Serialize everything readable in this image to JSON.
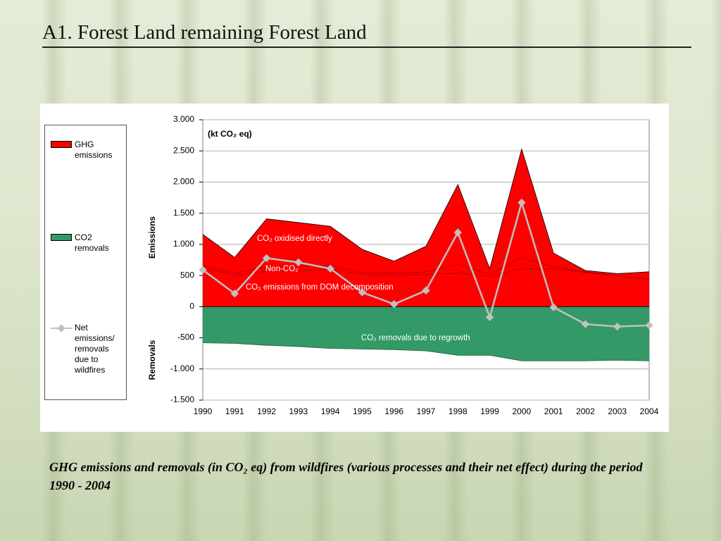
{
  "title": "A1. Forest Land remaining Forest Land",
  "caption": "GHG emissions and removals (in CO₂ eq) from wildfires (various processes and their net effect) during the period 1990 - 2004",
  "chart_data": {
    "type": "area",
    "unit_label": "(kt CO₂ eq)",
    "y_label_top": "Emissions",
    "y_label_bottom": "Removals",
    "categories": [
      "1990",
      "1991",
      "1992",
      "1993",
      "1994",
      "1995",
      "1996",
      "1997",
      "1998",
      "1999",
      "2000",
      "2001",
      "2002",
      "2003",
      "2004"
    ],
    "ylim": [
      -1500,
      3000
    ],
    "yticks": [
      {
        "value": 3000,
        "label": "3.000"
      },
      {
        "value": 2500,
        "label": "2.500"
      },
      {
        "value": 2000,
        "label": "2.000"
      },
      {
        "value": 1500,
        "label": "1.500"
      },
      {
        "value": 1000,
        "label": "1.000"
      },
      {
        "value": 500,
        "label": "500"
      },
      0,
      {
        "value": -500,
        "label": "-500"
      },
      {
        "value": -1000,
        "label": "-1.000"
      },
      {
        "value": -1500,
        "label": "-1.500"
      }
    ],
    "grid": true,
    "emissions": {
      "name": "GHG emissions",
      "color": "#ff0000",
      "components": [
        {
          "name": "CO₂ emissions from DOM decomposition",
          "values": [
            620,
            510,
            570,
            580,
            600,
            520,
            510,
            520,
            540,
            490,
            610,
            610,
            550,
            500,
            440
          ]
        },
        {
          "name": "Non-CO₂",
          "values": [
            40,
            30,
            70,
            70,
            60,
            30,
            30,
            40,
            140,
            30,
            180,
            30,
            10,
            0,
            0
          ]
        },
        {
          "name": "CO₂ oxidised directly",
          "values": [
            500,
            250,
            770,
            700,
            630,
            370,
            190,
            410,
            1280,
            90,
            1740,
            220,
            20,
            30,
            120
          ]
        }
      ]
    },
    "removals": {
      "name": "CO2 removals",
      "label": "CO₂ removals due to regrowth",
      "color": "#339966",
      "values": [
        -580,
        -590,
        -620,
        -640,
        -670,
        -680,
        -690,
        -710,
        -780,
        -780,
        -870,
        -870,
        -870,
        -860,
        -870
      ]
    },
    "net": {
      "name": "Net emissions/ removals due to wildfires",
      "color": "#c0c0c0",
      "values": [
        590,
        210,
        780,
        710,
        610,
        230,
        40,
        260,
        1190,
        -170,
        1670,
        -10,
        -280,
        -320,
        -300
      ]
    }
  }
}
